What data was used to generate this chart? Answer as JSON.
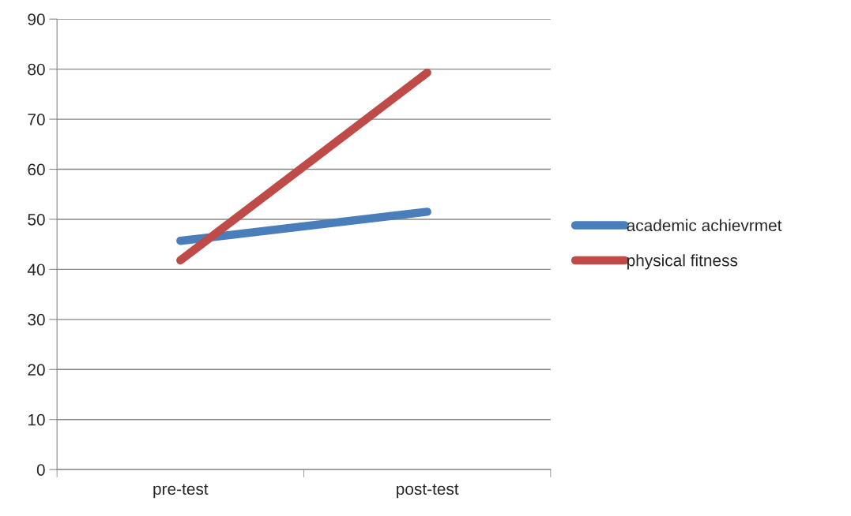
{
  "chart_data": {
    "type": "line",
    "categories": [
      "pre-test",
      "post-test"
    ],
    "series": [
      {
        "name": "academic achievrmet",
        "color": "#4a7ebb",
        "values": [
          45.7,
          51.5
        ]
      },
      {
        "name": "physical fitness",
        "color": "#be4b48",
        "values": [
          41.8,
          79.3
        ]
      }
    ],
    "ylim": [
      0,
      90
    ],
    "yticks": [
      0,
      10,
      20,
      30,
      40,
      50,
      60,
      70,
      80,
      90
    ],
    "grid": "y",
    "legend": "right",
    "marker": "none",
    "line_style": "solid"
  }
}
